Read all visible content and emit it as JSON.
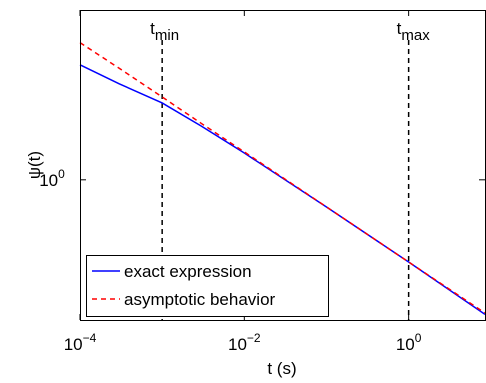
{
  "chart_data": {
    "type": "line",
    "xlabel": "t (s)",
    "ylabel": "ψ(t)",
    "log_x": true,
    "log_y": true,
    "x": [
      0.0001,
      0.0003,
      0.001,
      0.003,
      0.01,
      0.1,
      1,
      8.5
    ],
    "series": [
      {
        "name": "exact expression",
        "color": "#0000ff",
        "dash": false,
        "values": [
          2.35,
          2.04,
          1.77,
          1.49,
          1.22,
          0.817,
          0.543,
          0.368
        ]
      },
      {
        "name": "asymptotic behavior",
        "color": "#ff0000",
        "dash": true,
        "values": [
          2.77,
          2.29,
          1.85,
          1.52,
          1.23,
          0.818,
          0.543,
          0.372
        ]
      }
    ],
    "vlines": [
      {
        "x": 0.001,
        "label": "t",
        "sub": "min"
      },
      {
        "x": 1,
        "label": "t",
        "sub": "max"
      }
    ],
    "xlim": [
      0.0001,
      8.5
    ],
    "ylim": [
      0.353,
      3.53
    ],
    "xticks": [
      {
        "value": 0.0001,
        "label": "10",
        "exponent": "−4"
      },
      {
        "value": 0.01,
        "label": "10",
        "exponent": "−2"
      },
      {
        "value": 1,
        "label": "10",
        "exponent": "0"
      }
    ],
    "yticks": [
      {
        "value": 1,
        "label": "10",
        "exponent": "0"
      }
    ],
    "legend": "lower left"
  }
}
